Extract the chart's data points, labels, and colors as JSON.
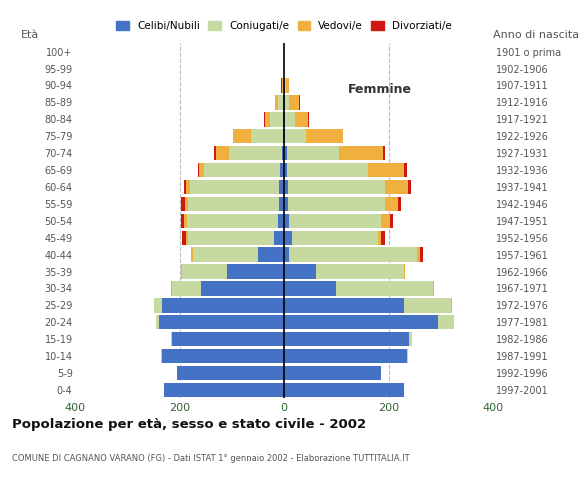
{
  "title": "Popolazione per età, sesso e stato civile - 2002",
  "subtitle": "COMUNE DI CAGNANO VARANO (FG) - Dati ISTAT 1° gennaio 2002 - Elaborazione TUTTITALIA.IT",
  "ylabel_left": "Età",
  "ylabel_right": "Anno di nascita",
  "xlabel_right": "Femmine",
  "age_groups": [
    "0-4",
    "5-9",
    "10-14",
    "15-19",
    "20-24",
    "25-29",
    "30-34",
    "35-39",
    "40-44",
    "45-49",
    "50-54",
    "55-59",
    "60-64",
    "65-69",
    "70-74",
    "75-79",
    "80-84",
    "85-89",
    "90-94",
    "95-99",
    "100+"
  ],
  "birth_years": [
    "1997-2001",
    "1992-1996",
    "1987-1991",
    "1982-1986",
    "1977-1981",
    "1972-1976",
    "1967-1971",
    "1962-1966",
    "1957-1961",
    "1952-1956",
    "1947-1951",
    "1942-1946",
    "1937-1941",
    "1932-1936",
    "1927-1931",
    "1922-1926",
    "1917-1921",
    "1912-1916",
    "1907-1911",
    "1902-1906",
    "1901 o prima"
  ],
  "colors": {
    "celibe": "#4472c4",
    "coniugato": "#c5d9a0",
    "vedovo": "#f0b040",
    "divorziato": "#cc1a10"
  },
  "legend_labels": [
    "Celibi/Nubili",
    "Coniugati/e",
    "Vedovi/e",
    "Divorziati/e"
  ],
  "males": {
    "celibe": [
      230,
      205,
      235,
      215,
      240,
      235,
      160,
      110,
      50,
      20,
      12,
      10,
      10,
      8,
      5,
      3,
      3,
      2,
      1,
      0,
      0
    ],
    "coniugato": [
      0,
      0,
      1,
      2,
      5,
      15,
      55,
      85,
      125,
      165,
      175,
      175,
      170,
      145,
      100,
      60,
      25,
      10,
      2,
      0,
      0
    ],
    "vedovo": [
      0,
      0,
      0,
      0,
      0,
      0,
      1,
      2,
      3,
      3,
      5,
      5,
      8,
      10,
      25,
      35,
      8,
      5,
      2,
      0,
      0
    ],
    "divorziato": [
      0,
      0,
      0,
      0,
      0,
      0,
      0,
      0,
      0,
      8,
      5,
      8,
      3,
      2,
      5,
      0,
      2,
      1,
      2,
      0,
      0
    ]
  },
  "females": {
    "nubile": [
      230,
      185,
      235,
      240,
      295,
      230,
      100,
      60,
      10,
      15,
      10,
      8,
      8,
      5,
      5,
      2,
      2,
      2,
      1,
      0,
      0
    ],
    "coniugata": [
      0,
      0,
      2,
      5,
      30,
      90,
      185,
      170,
      245,
      165,
      175,
      185,
      185,
      155,
      100,
      40,
      18,
      8,
      2,
      0,
      0
    ],
    "vedova": [
      0,
      0,
      0,
      0,
      0,
      2,
      2,
      2,
      5,
      5,
      18,
      25,
      45,
      70,
      85,
      70,
      25,
      18,
      6,
      0,
      0
    ],
    "divorziata": [
      0,
      0,
      0,
      0,
      0,
      0,
      0,
      0,
      5,
      8,
      5,
      5,
      5,
      5,
      3,
      0,
      2,
      2,
      1,
      0,
      0
    ]
  },
  "xlim": 400,
  "background_color": "#ffffff",
  "grid_color": "#bbbbbb"
}
